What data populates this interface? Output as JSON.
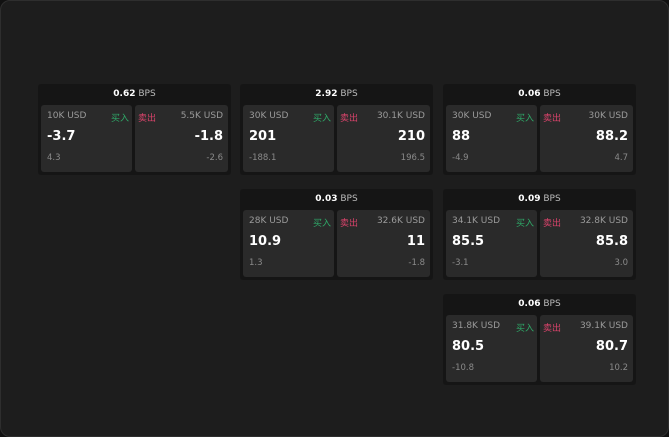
{
  "unit": "BPS",
  "buy_label": "买入",
  "sell_label": "卖出",
  "colors": {
    "buy": "#2fa868",
    "sell": "#d9436b"
  },
  "cards": [
    {
      "spread": "0.62",
      "buy": {
        "amount": "10K USD",
        "price": "-3.7",
        "change": "4.3"
      },
      "sell": {
        "amount": "5.5K USD",
        "price": "-1.8",
        "change": "-2.6"
      }
    },
    {
      "spread": "2.92",
      "buy": {
        "amount": "30K USD",
        "price": "201",
        "change": "-188.1"
      },
      "sell": {
        "amount": "30.1K USD",
        "price": "210",
        "change": "196.5"
      }
    },
    {
      "spread": "0.06",
      "buy": {
        "amount": "30K USD",
        "price": "88",
        "change": "-4.9"
      },
      "sell": {
        "amount": "30K USD",
        "price": "88.2",
        "change": "4.7"
      }
    },
    {
      "spread": "0.03",
      "buy": {
        "amount": "28K USD",
        "price": "10.9",
        "change": "1.3"
      },
      "sell": {
        "amount": "32.6K USD",
        "price": "11",
        "change": "-1.8"
      }
    },
    {
      "spread": "0.09",
      "buy": {
        "amount": "34.1K USD",
        "price": "85.5",
        "change": "-3.1"
      },
      "sell": {
        "amount": "32.8K USD",
        "price": "85.8",
        "change": "3.0"
      }
    },
    {
      "spread": "0.06",
      "buy": {
        "amount": "31.8K USD",
        "price": "80.5",
        "change": "-10.8"
      },
      "sell": {
        "amount": "39.1K USD",
        "price": "80.7",
        "change": "10.2"
      }
    }
  ]
}
